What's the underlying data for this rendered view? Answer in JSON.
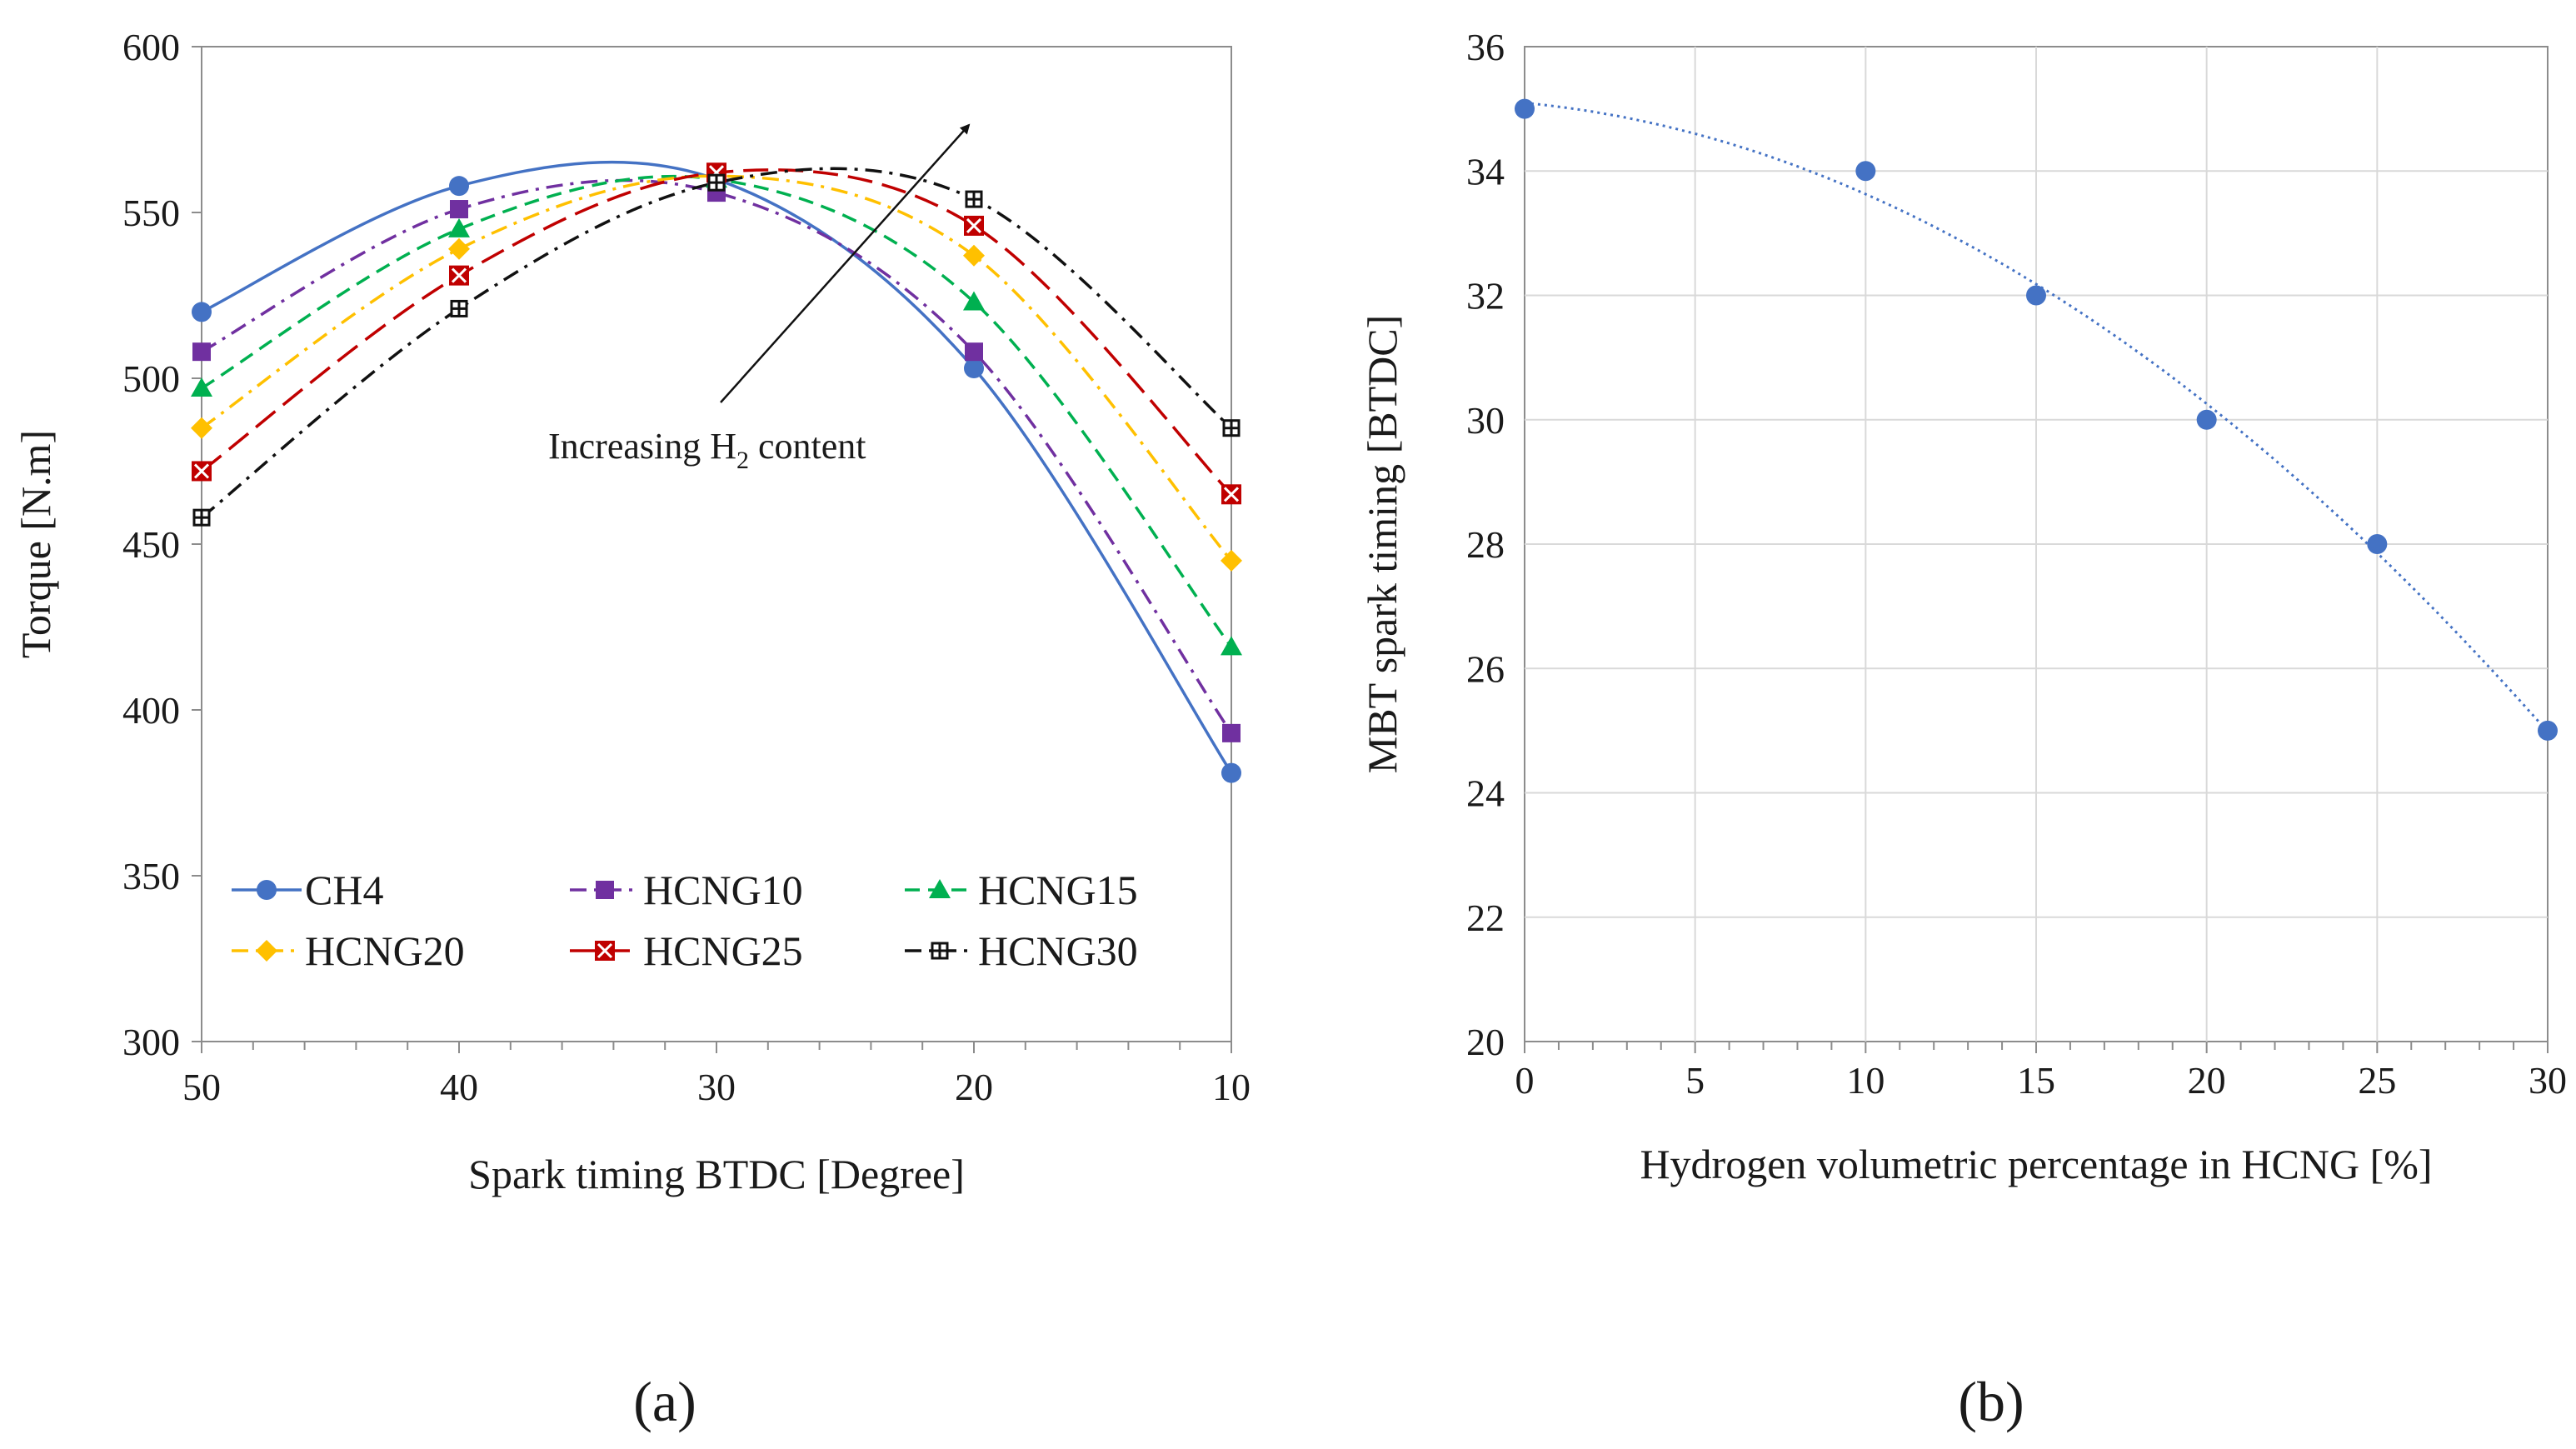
{
  "chart_data": [
    {
      "type": "line",
      "panel_label": "(a)",
      "xlabel": "Spark timing BTDC [Degree]",
      "ylabel": "Torque [N.m]",
      "x": [
        50,
        40,
        30,
        20,
        10
      ],
      "xlim": [
        50,
        10
      ],
      "ylim": [
        300,
        600
      ],
      "xticks": [
        50,
        40,
        30,
        20,
        10
      ],
      "yticks": [
        300,
        350,
        400,
        450,
        500,
        550,
        600
      ],
      "grid": false,
      "legend": "bottom-left, 3 columns",
      "series": [
        {
          "name": "CH4",
          "values": [
            520,
            558,
            560,
            503,
            381
          ],
          "color": "#4472c4",
          "marker": "circle",
          "dash": "solid"
        },
        {
          "name": "HCNG10",
          "values": [
            508,
            551,
            556,
            508,
            393
          ],
          "color": "#7030a0",
          "marker": "square",
          "dash": "dash-dot"
        },
        {
          "name": "HCNG15",
          "values": [
            497,
            545,
            560,
            523,
            419
          ],
          "color": "#00b050",
          "marker": "triangle",
          "dash": "dash"
        },
        {
          "name": "HCNG20",
          "values": [
            485,
            539,
            561,
            537,
            445
          ],
          "color": "#ffc000",
          "marker": "diamond",
          "dash": "dash-dot"
        },
        {
          "name": "HCNG25",
          "values": [
            472,
            531,
            562,
            546,
            465
          ],
          "color": "#c00000",
          "marker": "xsquare",
          "dash": "long-dash"
        },
        {
          "name": "HCNG30",
          "values": [
            458,
            521,
            559,
            554,
            485
          ],
          "color": "#111111",
          "marker": "hashsquare",
          "dash": "dash-dot"
        }
      ],
      "annotation": {
        "text_before": "Increasing H",
        "subscript": "2",
        "text_after": " content",
        "arrow": "from lower-left to upper-right"
      }
    },
    {
      "type": "scatter",
      "panel_label": "(b)",
      "xlabel": "Hydrogen volumetric percentage in HCNG [%]",
      "ylabel": "MBT spark timing [BTDC]",
      "x": [
        0,
        10,
        15,
        20,
        25,
        30
      ],
      "values": [
        35,
        34,
        32,
        30,
        28,
        25
      ],
      "xlim": [
        0,
        30
      ],
      "ylim": [
        20,
        36
      ],
      "xticks": [
        0,
        5,
        10,
        15,
        20,
        25,
        30
      ],
      "yticks": [
        20,
        22,
        24,
        26,
        28,
        30,
        32,
        34,
        36
      ],
      "grid": true,
      "color": "#4472c4",
      "trendline": {
        "type": "polynomial-2",
        "style": "dotted"
      }
    }
  ]
}
